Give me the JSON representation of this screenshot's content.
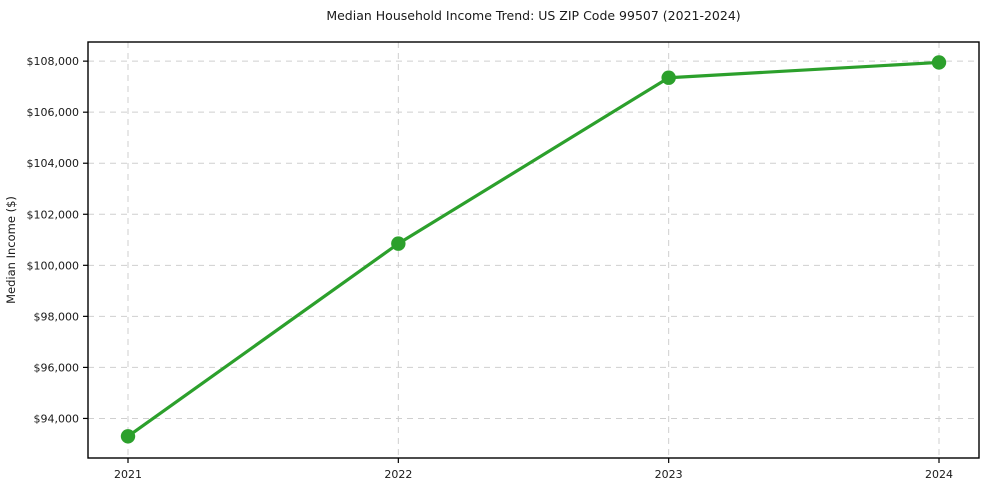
{
  "chart_data": {
    "type": "line",
    "title": "Median Household Income Trend: US ZIP Code 99507 (2021-2024)",
    "xlabel": "",
    "ylabel": "Median Income ($)",
    "categories": [
      "2021",
      "2022",
      "2023",
      "2024"
    ],
    "series": [
      {
        "name": "Median Household Income",
        "values": [
          93300,
          100850,
          107350,
          107950
        ]
      }
    ],
    "y_ticks": [
      {
        "value": 94000,
        "label": "$94,000"
      },
      {
        "value": 96000,
        "label": "$96,000"
      },
      {
        "value": 98000,
        "label": "$98,000"
      },
      {
        "value": 100000,
        "label": "$100,000"
      },
      {
        "value": 102000,
        "label": "$102,000"
      },
      {
        "value": 104000,
        "label": "$104,000"
      },
      {
        "value": 106000,
        "label": "$106,000"
      },
      {
        "value": 108000,
        "label": "$108,000"
      }
    ],
    "ylim": [
      92450,
      108750
    ],
    "grid": "both",
    "grid_style": "dashed",
    "legend": "none",
    "colors": {
      "line": "#2ca02c",
      "marker": "#2ca02c",
      "grid": "#cfcfcf",
      "axis": "#000000",
      "text": "#1a1a1a",
      "background": "#ffffff"
    }
  }
}
